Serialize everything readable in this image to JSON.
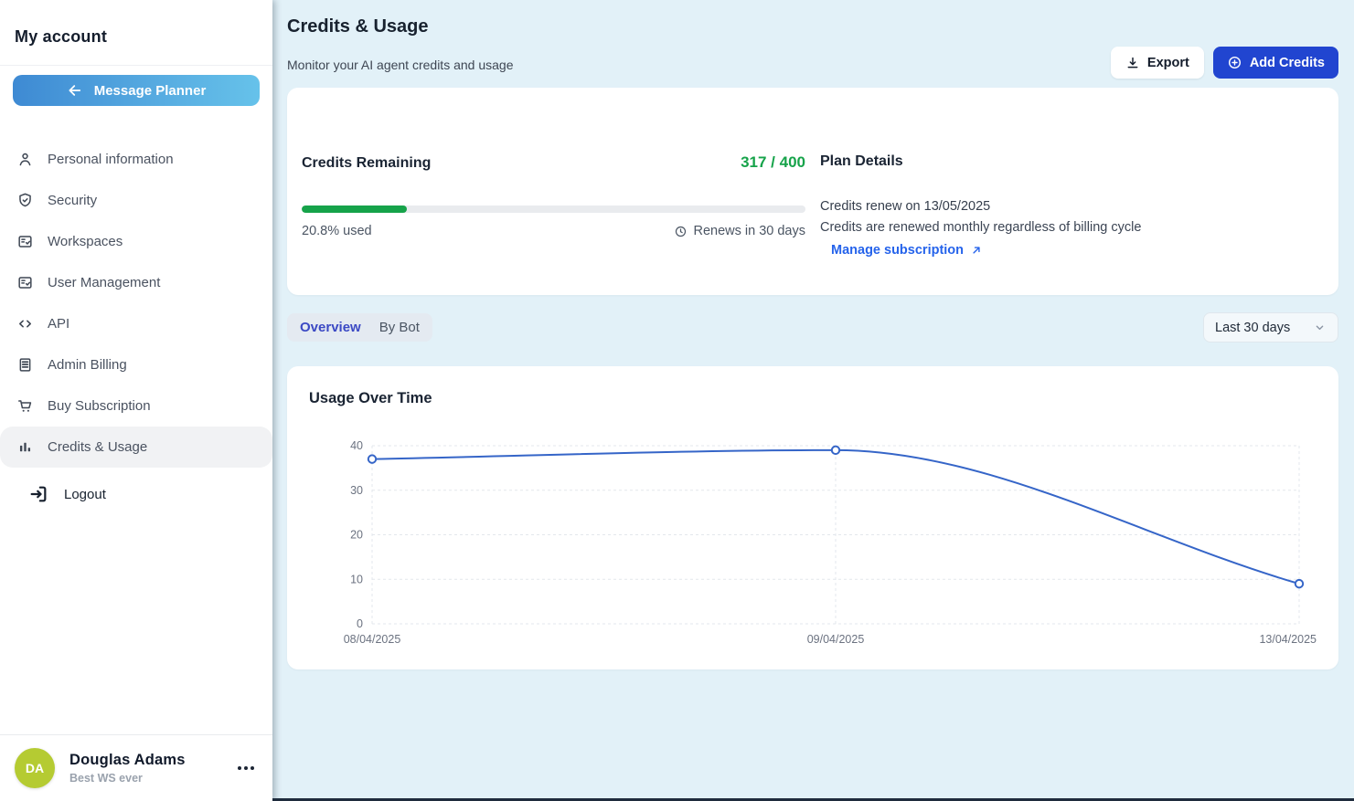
{
  "sidebar": {
    "title": "My account",
    "back_button_label": "Message Planner",
    "items": [
      {
        "label": "Personal information",
        "icon": "user-icon"
      },
      {
        "label": "Security",
        "icon": "shield-check-icon"
      },
      {
        "label": "Workspaces",
        "icon": "list-check-icon"
      },
      {
        "label": "User Management",
        "icon": "list-check-icon"
      },
      {
        "label": "API",
        "icon": "code-icon"
      },
      {
        "label": "Admin Billing",
        "icon": "billing-icon"
      },
      {
        "label": "Buy Subscription",
        "icon": "cart-icon"
      },
      {
        "label": "Credits & Usage",
        "icon": "bar-chart-icon",
        "active": true
      }
    ],
    "logout_label": "Logout",
    "user": {
      "initials": "DA",
      "name": "Douglas Adams",
      "workspace": "Best WS ever"
    }
  },
  "header": {
    "title": "Credits & Usage",
    "subtitle": "Monitor your AI agent credits and usage",
    "export_label": "Export",
    "add_credits_label": "Add Credits"
  },
  "credits": {
    "title": "Credits Remaining",
    "value": "317 / 400",
    "used_percent": 20.8,
    "used_label": "20.8% used",
    "renew_label": "Renews in 30 days"
  },
  "plan": {
    "title": "Plan Details",
    "renew_line": "Credits renew on 13/05/2025",
    "note_line": "Credits are renewed monthly regardless of billing cycle",
    "manage_label": "Manage subscription"
  },
  "filters": {
    "tabs": [
      "Overview",
      "By Bot"
    ],
    "active_tab": "Overview",
    "range_label": "Last 30 days"
  },
  "chart_data": {
    "type": "line",
    "title": "Usage Over Time",
    "x": [
      "08/04/2025",
      "09/04/2025",
      "13/04/2025"
    ],
    "values": [
      37,
      39,
      9
    ],
    "ylim": [
      0,
      40
    ],
    "yticks": [
      0,
      10,
      20,
      30,
      40
    ],
    "grid": "dashed",
    "legend": "none",
    "line_color": "#3565c8",
    "grid_color": "#e3e7ec",
    "tick_color": "#6b7280",
    "marker": "open-circle"
  },
  "colors": {
    "accent_blue": "#2145d0",
    "success_green": "#16a34a",
    "link_blue": "#2563eb",
    "page_background": "#e2f1f8",
    "avatar_lime": "#b5cb32"
  }
}
